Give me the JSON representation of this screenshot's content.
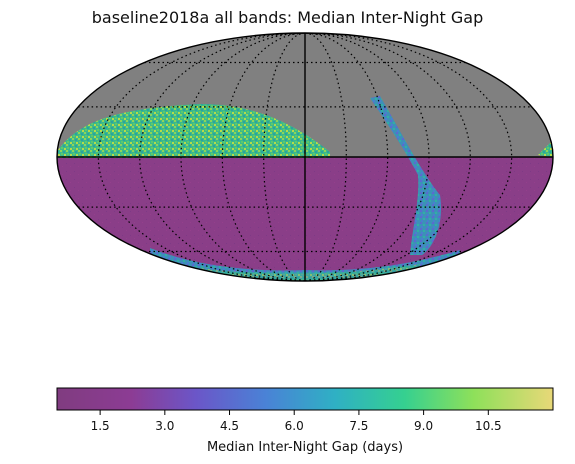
{
  "chart_data": {
    "type": "heatmap",
    "projection": "mollweide",
    "title": "baseline2018a all bands: Median Inter-Night Gap",
    "colorbar": {
      "label": "Median Inter-Night Gap (days)",
      "ticks": [
        "1.5",
        "3.0",
        "4.5",
        "6.0",
        "7.5",
        "9.0",
        "10.5"
      ],
      "tick_values": [
        1.5,
        3.0,
        4.5,
        6.0,
        7.5,
        9.0,
        10.5
      ],
      "range": [
        0.5,
        12.0
      ],
      "colormap": "viridis"
    },
    "colors": {
      "unobserved": "#808080",
      "dominant_value": "#8a3e88"
    },
    "grid": true
  }
}
